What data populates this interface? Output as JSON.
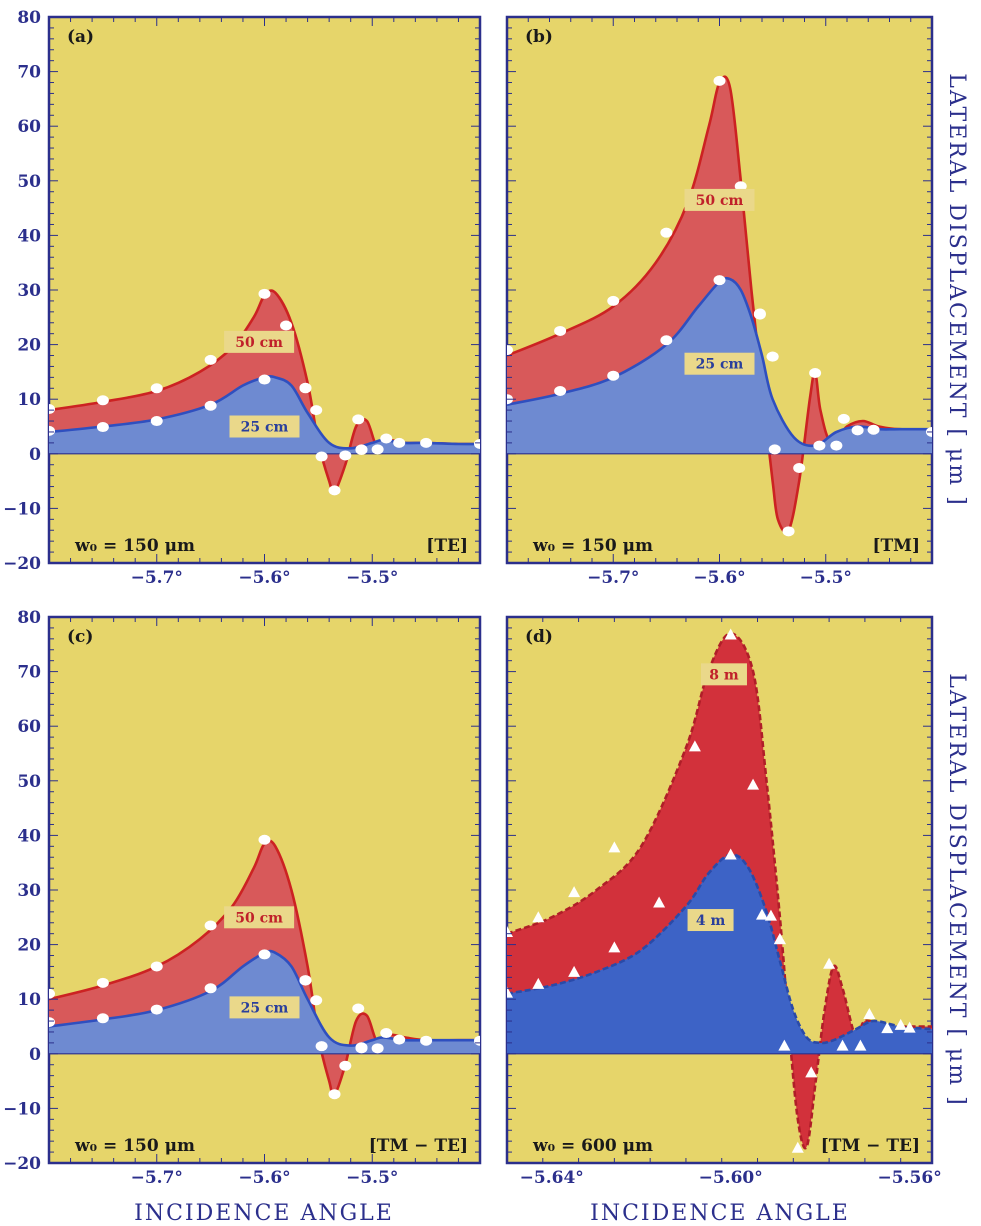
{
  "figure": {
    "y_axis_label": "LATERAL DISPLACEMENT [ μm ]",
    "x_axis_label": "INCIDENCE ANGLE"
  },
  "chart_data": [
    {
      "type": "area",
      "panel": "(a)",
      "tag": "[TE]",
      "waist": "w₀ = 150 μm",
      "xlim": [
        -5.8,
        -5.4
      ],
      "ylim": [
        -20,
        80
      ],
      "xticks": [
        {
          "v": -5.7,
          "label": "−5.7°"
        },
        {
          "v": -5.6,
          "label": "−5.6°"
        },
        {
          "v": -5.5,
          "label": "−5.5°"
        }
      ],
      "yticks": [
        -20,
        -10,
        0,
        10,
        20,
        30,
        40,
        50,
        60,
        70,
        80
      ],
      "marker": "circle",
      "series": [
        {
          "name": "50 cm",
          "color": "#d8595a",
          "line": "#cc2222",
          "x": [
            -5.8,
            -5.75,
            -5.7,
            -5.66,
            -5.63,
            -5.61,
            -5.6,
            -5.59,
            -5.575,
            -5.56,
            -5.55,
            -5.54,
            -5.535,
            -5.525,
            -5.515,
            -5.505,
            -5.495,
            -5.485,
            -5.47,
            -5.45,
            -5.42,
            -5.4
          ],
          "y": [
            8,
            9.5,
            11.5,
            15,
            19.5,
            25,
            29,
            29.5,
            24,
            13,
            2,
            -5,
            -7,
            -2,
            5,
            6,
            1,
            2.5,
            2,
            2,
            1.8,
            1.8
          ],
          "points": [
            [
              -5.8,
              8.2
            ],
            [
              -5.75,
              9.8
            ],
            [
              -5.7,
              12
            ],
            [
              -5.65,
              17.2
            ],
            [
              -5.6,
              29.3
            ],
            [
              -5.58,
              23.5
            ],
            [
              -5.562,
              12.1
            ],
            [
              -5.552,
              8
            ],
            [
              -5.547,
              -0.5
            ],
            [
              -5.535,
              -6.7
            ],
            [
              -5.525,
              -0.3
            ],
            [
              -5.513,
              6.3
            ],
            [
              -5.51,
              0.8
            ],
            [
              -5.495,
              0.8
            ],
            [
              -5.487,
              2.8
            ],
            [
              -5.475,
              2
            ],
            [
              -5.45,
              2
            ],
            [
              -5.4,
              1.8
            ]
          ],
          "label_at": [
            -5.605,
            20.5
          ]
        },
        {
          "name": "25 cm",
          "color": "#6e8ad1",
          "line": "#2f4fbf",
          "x": [
            -5.8,
            -5.75,
            -5.7,
            -5.65,
            -5.62,
            -5.6,
            -5.59,
            -5.575,
            -5.56,
            -5.54,
            -5.52,
            -5.5,
            -5.49,
            -5.47,
            -5.45,
            -5.42,
            -5.4
          ],
          "y": [
            4,
            5,
            6.3,
            9,
            12.5,
            14,
            14,
            12.5,
            7.5,
            2,
            1,
            2,
            2.5,
            2,
            2,
            1.8,
            1.8
          ],
          "points": [
            [
              -5.8,
              4.2
            ],
            [
              -5.75,
              4.9
            ],
            [
              -5.7,
              6
            ],
            [
              -5.65,
              8.8
            ],
            [
              -5.6,
              13.6
            ],
            [
              -5.562,
              12
            ],
            [
              -5.51,
              0.7
            ]
          ],
          "label_at": [
            -5.6,
            5
          ]
        }
      ]
    },
    {
      "type": "area",
      "panel": "(b)",
      "tag": "[TM]",
      "waist": "w₀ = 150 μm",
      "xlim": [
        -5.8,
        -5.4
      ],
      "ylim": [
        -20,
        80
      ],
      "xticks": [
        {
          "v": -5.7,
          "label": "−5.7°"
        },
        {
          "v": -5.6,
          "label": "−5.6°"
        },
        {
          "v": -5.5,
          "label": "−5.5°"
        }
      ],
      "yticks": [
        -20,
        -10,
        0,
        10,
        20,
        30,
        40,
        50,
        60,
        70,
        80
      ],
      "marker": "circle",
      "series": [
        {
          "name": "50 cm",
          "color": "#d8595a",
          "line": "#cc2222",
          "x": [
            -5.8,
            -5.75,
            -5.7,
            -5.66,
            -5.63,
            -5.61,
            -5.6,
            -5.59,
            -5.58,
            -5.57,
            -5.56,
            -5.55,
            -5.545,
            -5.535,
            -5.525,
            -5.515,
            -5.51,
            -5.505,
            -5.495,
            -5.48,
            -5.465,
            -5.45,
            -5.43,
            -5.4
          ],
          "y": [
            18,
            22,
            27,
            35,
            46,
            60,
            68,
            67,
            50,
            30,
            12,
            -5,
            -12,
            -14,
            -5,
            10,
            15,
            8,
            2,
            5,
            6,
            5,
            4.5,
            4.5
          ],
          "points": [
            [
              -5.8,
              19
            ],
            [
              -5.75,
              22.5
            ],
            [
              -5.7,
              28
            ],
            [
              -5.65,
              40.5
            ],
            [
              -5.6,
              68.3
            ],
            [
              -5.58,
              49
            ],
            [
              -5.562,
              25.5
            ],
            [
              -5.55,
              17.8
            ],
            [
              -5.548,
              0.8
            ],
            [
              -5.535,
              -14.2
            ],
            [
              -5.525,
              -2.6
            ],
            [
              -5.51,
              14.8
            ],
            [
              -5.506,
              1.5
            ],
            [
              -5.49,
              1.5
            ],
            [
              -5.483,
              6.4
            ],
            [
              -5.47,
              4.3
            ],
            [
              -5.455,
              4.4
            ],
            [
              -5.4,
              4
            ]
          ],
          "label_at": [
            -5.6,
            46.5
          ]
        },
        {
          "name": "25 cm",
          "color": "#6e8ad1",
          "line": "#2f4fbf",
          "x": [
            -5.8,
            -5.75,
            -5.7,
            -5.65,
            -5.62,
            -5.6,
            -5.59,
            -5.58,
            -5.57,
            -5.56,
            -5.55,
            -5.53,
            -5.51,
            -5.49,
            -5.47,
            -5.45,
            -5.43,
            -5.4
          ],
          "y": [
            9,
            11,
            14,
            20,
            27,
            31.5,
            32,
            30,
            25,
            18,
            10,
            3,
            1.5,
            4,
            5,
            4.5,
            4.5,
            4.5
          ],
          "points": [
            [
              -5.8,
              10
            ],
            [
              -5.75,
              11.5
            ],
            [
              -5.7,
              14.3
            ],
            [
              -5.65,
              20.8
            ],
            [
              -5.6,
              31.8
            ],
            [
              -5.562,
              25.7
            ],
            [
              -5.55,
              17.8
            ]
          ],
          "label_at": [
            -5.6,
            16.5
          ]
        }
      ]
    },
    {
      "type": "area",
      "panel": "(c)",
      "tag": "[TM − TE]",
      "waist": "w₀ = 150 μm",
      "xlim": [
        -5.8,
        -5.4
      ],
      "ylim": [
        -20,
        80
      ],
      "xticks": [
        {
          "v": -5.7,
          "label": "−5.7°"
        },
        {
          "v": -5.6,
          "label": "−5.6°"
        },
        {
          "v": -5.5,
          "label": "−5.5°"
        }
      ],
      "yticks": [
        -20,
        -10,
        0,
        10,
        20,
        30,
        40,
        50,
        60,
        70,
        80
      ],
      "marker": "circle",
      "series": [
        {
          "name": "50 cm",
          "color": "#d8595a",
          "line": "#cc2222",
          "x": [
            -5.8,
            -5.75,
            -5.7,
            -5.66,
            -5.63,
            -5.61,
            -5.6,
            -5.59,
            -5.575,
            -5.56,
            -5.55,
            -5.54,
            -5.535,
            -5.525,
            -5.515,
            -5.505,
            -5.495,
            -5.485,
            -5.47,
            -5.45,
            -5.42,
            -5.4
          ],
          "y": [
            10,
            12.5,
            16,
            21,
            27,
            34,
            38.5,
            38,
            30,
            16,
            3,
            -5,
            -7.5,
            -2,
            6,
            7,
            2,
            3.5,
            3,
            2.5,
            2.5,
            2.5
          ],
          "points": [
            [
              -5.8,
              11
            ],
            [
              -5.75,
              13
            ],
            [
              -5.7,
              16
            ],
            [
              -5.65,
              23.5
            ],
            [
              -5.6,
              39.2
            ],
            [
              -5.58,
              25.7
            ],
            [
              -5.562,
              13.5
            ],
            [
              -5.552,
              9.8
            ],
            [
              -5.547,
              1.4
            ],
            [
              -5.535,
              -7.4
            ],
            [
              -5.525,
              -2.2
            ],
            [
              -5.513,
              8.3
            ],
            [
              -5.51,
              1.2
            ],
            [
              -5.495,
              1
            ],
            [
              -5.487,
              3.8
            ],
            [
              -5.475,
              2.6
            ],
            [
              -5.45,
              2.4
            ],
            [
              -5.4,
              2.4
            ]
          ],
          "label_at": [
            -5.605,
            25
          ]
        },
        {
          "name": "25 cm",
          "color": "#6e8ad1",
          "line": "#2f4fbf",
          "x": [
            -5.8,
            -5.75,
            -5.7,
            -5.65,
            -5.62,
            -5.6,
            -5.59,
            -5.575,
            -5.56,
            -5.54,
            -5.52,
            -5.5,
            -5.49,
            -5.47,
            -5.45,
            -5.42,
            -5.4
          ],
          "y": [
            5,
            6.3,
            8,
            11.5,
            16,
            18.5,
            18.5,
            16,
            10,
            3,
            1.5,
            2.5,
            3,
            2.5,
            2.5,
            2.5,
            2.5
          ],
          "points": [
            [
              -5.8,
              5.8
            ],
            [
              -5.75,
              6.5
            ],
            [
              -5.7,
              8.1
            ],
            [
              -5.65,
              12
            ],
            [
              -5.6,
              18.2
            ],
            [
              -5.562,
              13.4
            ],
            [
              -5.51,
              1
            ]
          ],
          "label_at": [
            -5.6,
            8.5
          ]
        }
      ]
    },
    {
      "type": "area",
      "panel": "(d)",
      "tag": "[TM − TE]",
      "waist": "w₀ = 600 μm",
      "xlim": [
        -5.65,
        -5.555
      ],
      "ylim": [
        -20,
        80
      ],
      "xticks": [
        {
          "v": -5.64,
          "label": "−5.64°"
        },
        {
          "v": -5.6,
          "label": "−5.60°"
        },
        {
          "v": -5.56,
          "label": "−5.56°"
        }
      ],
      "yticks": [
        -20,
        -10,
        0,
        10,
        20,
        30,
        40,
        50,
        60,
        70,
        80
      ],
      "marker": "triangle",
      "dashed": true,
      "series": [
        {
          "name": "8 m",
          "color": "#d2313b",
          "line": "#b01e28",
          "x": [
            -5.65,
            -5.64,
            -5.63,
            -5.62,
            -5.61,
            -5.605,
            -5.6,
            -5.595,
            -5.592,
            -5.589,
            -5.587,
            -5.585,
            -5.583,
            -5.581,
            -5.579,
            -5.577,
            -5.575,
            -5.572,
            -5.57,
            -5.565,
            -5.56,
            -5.555
          ],
          "y": [
            22,
            25,
            30,
            38,
            56,
            70,
            77,
            70,
            50,
            25,
            5,
            -12,
            -17,
            -5,
            8,
            16,
            12,
            3,
            6,
            5,
            5,
            5
          ],
          "points": [
            [
              -5.65,
              22.3
            ],
            [
              -5.643,
              25
            ],
            [
              -5.635,
              29.6
            ],
            [
              -5.626,
              37.8
            ],
            [
              -5.608,
              56.3
            ],
            [
              -5.6,
              76.8
            ],
            [
              -5.595,
              49.3
            ],
            [
              -5.591,
              25.3
            ],
            [
              -5.589,
              21
            ],
            [
              -5.588,
              1.5
            ],
            [
              -5.585,
              -17.2
            ],
            [
              -5.582,
              -3.4
            ],
            [
              -5.578,
              16.5
            ],
            [
              -5.575,
              1.5
            ],
            [
              -5.571,
              1.5
            ],
            [
              -5.569,
              7.3
            ],
            [
              -5.565,
              4.7
            ],
            [
              -5.562,
              5.3
            ],
            [
              -5.56,
              4.8
            ]
          ],
          "label_at": [
            -5.6015,
            69.5
          ]
        },
        {
          "name": "4 m",
          "color": "#3d63c6",
          "line": "#2a4aa8",
          "x": [
            -5.65,
            -5.64,
            -5.63,
            -5.62,
            -5.61,
            -5.605,
            -5.6,
            -5.596,
            -5.592,
            -5.589,
            -5.586,
            -5.583,
            -5.58,
            -5.577,
            -5.572,
            -5.568,
            -5.562,
            -5.555
          ],
          "y": [
            11,
            12.5,
            15,
            19,
            27,
            33,
            36.5,
            34,
            26,
            17,
            8,
            3,
            2,
            2.5,
            4.5,
            6,
            5,
            4.5
          ],
          "points": [
            [
              -5.65,
              11.2
            ],
            [
              -5.643,
              12.8
            ],
            [
              -5.635,
              15
            ],
            [
              -5.626,
              19.5
            ],
            [
              -5.616,
              27.7
            ],
            [
              -5.6,
              36.5
            ],
            [
              -5.593,
              25.5
            ],
            [
              -5.589,
              21
            ]
          ],
          "label_at": [
            -5.6045,
            24.5
          ]
        }
      ]
    }
  ]
}
